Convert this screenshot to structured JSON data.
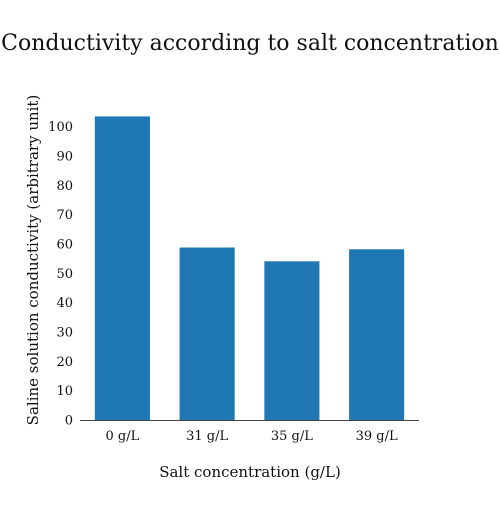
{
  "chart_data": {
    "type": "bar",
    "title": "Conductivity according to salt concentration",
    "xlabel": "Salt concentration (g/L)",
    "ylabel": "Saline solution conductivity (arbitrary unit)",
    "categories": [
      "0 g/L",
      "31 g/L",
      "35 g/L",
      "39 g/L"
    ],
    "values": [
      103.5,
      58.8,
      54.1,
      58.2
    ],
    "ylim": [
      0,
      105
    ],
    "yticks": [
      "0",
      "10",
      "20",
      "30",
      "40",
      "50",
      "60",
      "70",
      "80",
      "90",
      "100"
    ],
    "grid": false,
    "legend": "none",
    "bar_color": "#1f77b4"
  }
}
